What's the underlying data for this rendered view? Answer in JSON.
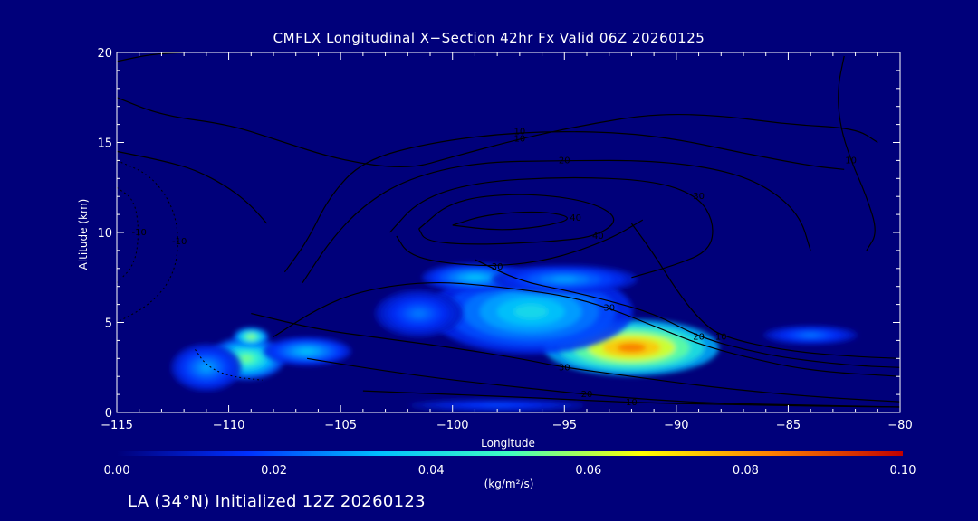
{
  "chart_data": {
    "type": "heatmap",
    "title": "CMFLX Longitudinal X−Section 42hr  Fx Valid 06Z 20260125",
    "xlabel": "Longitude",
    "ylabel": "Altitude (km)",
    "xlim": [
      -115,
      -80
    ],
    "ylim": [
      0,
      20
    ],
    "x_ticks": [
      -115,
      -110,
      -105,
      -100,
      -95,
      -90,
      -85,
      -80
    ],
    "x_tick_labels": [
      "−115",
      "−110",
      "−105",
      "−100",
      "−95",
      "−90",
      "−85",
      "−80"
    ],
    "y_ticks": [
      0,
      5,
      10,
      15,
      20
    ],
    "y_tick_labels": [
      "0",
      "5",
      "10",
      "15",
      "20"
    ],
    "colorbar": {
      "min": 0.0,
      "max": 0.1,
      "ticks": [
        "0.00",
        "0.02",
        "0.04",
        "0.06",
        "0.08",
        "0.10"
      ],
      "unit_label": "(kg/m²/s)",
      "colors": [
        "#00007a",
        "#0030ff",
        "#00c0ff",
        "#40ffc0",
        "#ffff00",
        "#ff8000",
        "#c00000"
      ]
    },
    "fill_blobs": [
      {
        "lon": -109.2,
        "alt": 3.0,
        "value": 0.055,
        "spread_lon": 1.3,
        "spread_alt": 0.9
      },
      {
        "lon": -109.0,
        "alt": 4.2,
        "value": 0.06,
        "spread_lon": 0.6,
        "spread_alt": 0.4
      },
      {
        "lon": -106.5,
        "alt": 3.4,
        "value": 0.035,
        "spread_lon": 1.5,
        "spread_alt": 0.6
      },
      {
        "lon": -111.0,
        "alt": 2.5,
        "value": 0.03,
        "spread_lon": 1.2,
        "spread_alt": 1.0
      },
      {
        "lon": -92.0,
        "alt": 3.6,
        "value": 0.085,
        "spread_lon": 3.0,
        "spread_alt": 1.2
      },
      {
        "lon": -96.5,
        "alt": 5.6,
        "value": 0.04,
        "spread_lon": 3.5,
        "spread_alt": 1.8
      },
      {
        "lon": -99.0,
        "alt": 7.5,
        "value": 0.035,
        "spread_lon": 1.8,
        "spread_alt": 0.6
      },
      {
        "lon": -95.0,
        "alt": 7.4,
        "value": 0.03,
        "spread_lon": 2.5,
        "spread_alt": 0.6
      },
      {
        "lon": -101.5,
        "alt": 5.5,
        "value": 0.025,
        "spread_lon": 1.5,
        "spread_alt": 1.0
      },
      {
        "lon": -84.0,
        "alt": 4.3,
        "value": 0.025,
        "spread_lon": 1.6,
        "spread_alt": 0.4
      },
      {
        "lon": -98.0,
        "alt": 0.4,
        "value": 0.02,
        "spread_lon": 3.0,
        "spread_alt": 0.25
      }
    ],
    "contour_lines": [
      {
        "label": "10",
        "points": [
          [
            -115,
            17.5
          ],
          [
            -113,
            16.5
          ],
          [
            -110,
            16
          ],
          [
            -108,
            15.2
          ],
          [
            -105,
            14
          ],
          [
            -102,
            13.5
          ],
          [
            -100,
            14.2
          ],
          [
            -97,
            15.2
          ],
          [
            -94,
            16
          ],
          [
            -91,
            16.6
          ],
          [
            -88,
            16.5
          ],
          [
            -85,
            16
          ],
          [
            -82,
            15.8
          ],
          [
            -81,
            15
          ]
        ]
      },
      {
        "label": "10",
        "points": [
          [
            -107.5,
            7.8
          ],
          [
            -106.5,
            9.5
          ],
          [
            -105.5,
            12
          ],
          [
            -104,
            14
          ],
          [
            -101,
            15
          ],
          [
            -97,
            15.6
          ],
          [
            -93,
            15.6
          ],
          [
            -90,
            15.2
          ],
          [
            -87,
            14.4
          ],
          [
            -84,
            13.7
          ],
          [
            -82.5,
            13.5
          ]
        ]
      },
      {
        "label": "20",
        "points": [
          [
            -106.7,
            7.2
          ],
          [
            -105.5,
            9.5
          ],
          [
            -104,
            11.5
          ],
          [
            -102,
            13
          ],
          [
            -99,
            13.9
          ],
          [
            -95,
            14
          ],
          [
            -91,
            14
          ],
          [
            -88,
            13.5
          ],
          [
            -86,
            12.6
          ],
          [
            -84.5,
            11
          ],
          [
            -84,
            9
          ]
        ]
      },
      {
        "label": "30",
        "points": [
          [
            -102.8,
            10
          ],
          [
            -101.5,
            11.8
          ],
          [
            -99,
            12.8
          ],
          [
            -95,
            13.1
          ],
          [
            -91,
            12.9
          ],
          [
            -89,
            12
          ],
          [
            -88.3,
            10.5
          ],
          [
            -88.5,
            9
          ],
          [
            -90,
            8.2
          ],
          [
            -92,
            7.5
          ]
        ]
      },
      {
        "label": "30",
        "points": [
          [
            -102.5,
            9.8
          ],
          [
            -102,
            8.8
          ],
          [
            -100.5,
            8.3
          ],
          [
            -98,
            8.1
          ],
          [
            -95.5,
            8.5
          ],
          [
            -93,
            9.6
          ],
          [
            -91.5,
            10.7
          ]
        ]
      },
      {
        "label": "40",
        "points": [
          [
            -101.5,
            10.2
          ],
          [
            -100,
            11.8
          ],
          [
            -97,
            12.2
          ],
          [
            -94,
            11.8
          ],
          [
            -92.5,
            10.8
          ],
          [
            -93.5,
            9.8
          ],
          [
            -95.5,
            9.5
          ],
          [
            -99,
            9.3
          ],
          [
            -101.2,
            9.5
          ],
          [
            -101.5,
            10.2
          ]
        ]
      },
      {
        "label": "40",
        "points": [
          [
            -100,
            10.4
          ],
          [
            -98.5,
            11
          ],
          [
            -96,
            11.2
          ],
          [
            -94.5,
            10.8
          ],
          [
            -96,
            10.3
          ],
          [
            -98,
            10.1
          ],
          [
            -100,
            10.4
          ]
        ]
      },
      {
        "label": "30",
        "points": [
          [
            -108,
            4.2
          ],
          [
            -106,
            5.8
          ],
          [
            -104,
            6.8
          ],
          [
            -101,
            7.3
          ],
          [
            -98,
            7.0
          ],
          [
            -95,
            6.5
          ],
          [
            -93,
            5.8
          ],
          [
            -91,
            4.8
          ],
          [
            -89,
            3.8
          ],
          [
            -87,
            3.1
          ],
          [
            -84,
            2.3
          ],
          [
            -80,
            2.0
          ]
        ]
      },
      {
        "label": "30",
        "points": [
          [
            -109,
            5.5
          ],
          [
            -106,
            4.6
          ],
          [
            -103,
            4.1
          ],
          [
            -100,
            3.6
          ],
          [
            -97,
            3.0
          ],
          [
            -95,
            2.5
          ],
          [
            -92,
            2.0
          ],
          [
            -89,
            1.5
          ],
          [
            -86,
            1.1
          ],
          [
            -83,
            0.8
          ],
          [
            -80,
            0.6
          ]
        ]
      },
      {
        "label": "20",
        "points": [
          [
            -106.5,
            3.0
          ],
          [
            -103,
            2.3
          ],
          [
            -100,
            1.8
          ],
          [
            -97,
            1.4
          ],
          [
            -94,
            1.0
          ],
          [
            -91,
            0.7
          ],
          [
            -88,
            0.5
          ],
          [
            -84,
            0.4
          ],
          [
            -80,
            0.3
          ]
        ]
      },
      {
        "label": "10",
        "points": [
          [
            -104,
            1.2
          ],
          [
            -100,
            1.0
          ],
          [
            -96,
            0.8
          ],
          [
            -92,
            0.55
          ],
          [
            -88,
            0.45
          ],
          [
            -84,
            0.35
          ],
          [
            -80,
            0.3
          ]
        ]
      },
      {
        "label": "20",
        "points": [
          [
            -99,
            8.5
          ],
          [
            -97,
            7.3
          ],
          [
            -95,
            6.8
          ],
          [
            -93,
            6.2
          ],
          [
            -91,
            5.5
          ],
          [
            -89,
            4.2
          ],
          [
            -87,
            3.5
          ],
          [
            -85,
            3.0
          ],
          [
            -82,
            2.6
          ],
          [
            -80,
            2.5
          ]
        ]
      },
      {
        "label": "10",
        "points": [
          [
            -92,
            10.5
          ],
          [
            -91,
            8.8
          ],
          [
            -90,
            6.8
          ],
          [
            -89,
            5.2
          ],
          [
            -88,
            4.2
          ],
          [
            -85,
            3.4
          ],
          [
            -82,
            3.1
          ],
          [
            -80,
            3.0
          ]
        ]
      },
      {
        "label": "10",
        "points": [
          [
            -82.5,
            19.8
          ],
          [
            -82.8,
            18
          ],
          [
            -82.7,
            16
          ],
          [
            -82.2,
            14
          ],
          [
            -81.5,
            12
          ],
          [
            -81,
            10
          ],
          [
            -81.5,
            9
          ]
        ]
      },
      {
        "label": "",
        "points": [
          [
            -115,
            14.5
          ],
          [
            -113,
            14
          ],
          [
            -111.5,
            13.5
          ],
          [
            -110,
            12.5
          ],
          [
            -109,
            11.5
          ],
          [
            -108.3,
            10.5
          ]
        ]
      },
      {
        "label": "",
        "points": [
          [
            -115,
            19.5
          ],
          [
            -113.5,
            19.9
          ],
          [
            -112,
            20
          ]
        ]
      }
    ],
    "dashed_contour_lines": [
      {
        "label": "-10",
        "points": [
          [
            -115,
            14.0
          ],
          [
            -113.5,
            13.2
          ],
          [
            -112.5,
            11.5
          ],
          [
            -112.2,
            9.5
          ],
          [
            -112.5,
            7.5
          ],
          [
            -113.5,
            6.0
          ],
          [
            -115,
            5.0
          ]
        ]
      },
      {
        "label": "-10",
        "points": [
          [
            -115,
            12.5
          ],
          [
            -114.2,
            11.8
          ],
          [
            -114,
            10.0
          ],
          [
            -114.2,
            8.2
          ],
          [
            -115,
            7.2
          ]
        ]
      },
      {
        "label": "",
        "points": [
          [
            -111.5,
            3.5
          ],
          [
            -111,
            2.6
          ],
          [
            -110,
            2.0
          ],
          [
            -108.5,
            1.8
          ]
        ]
      }
    ]
  },
  "footer": "LA (34°N) Initialized 12Z 20260123"
}
